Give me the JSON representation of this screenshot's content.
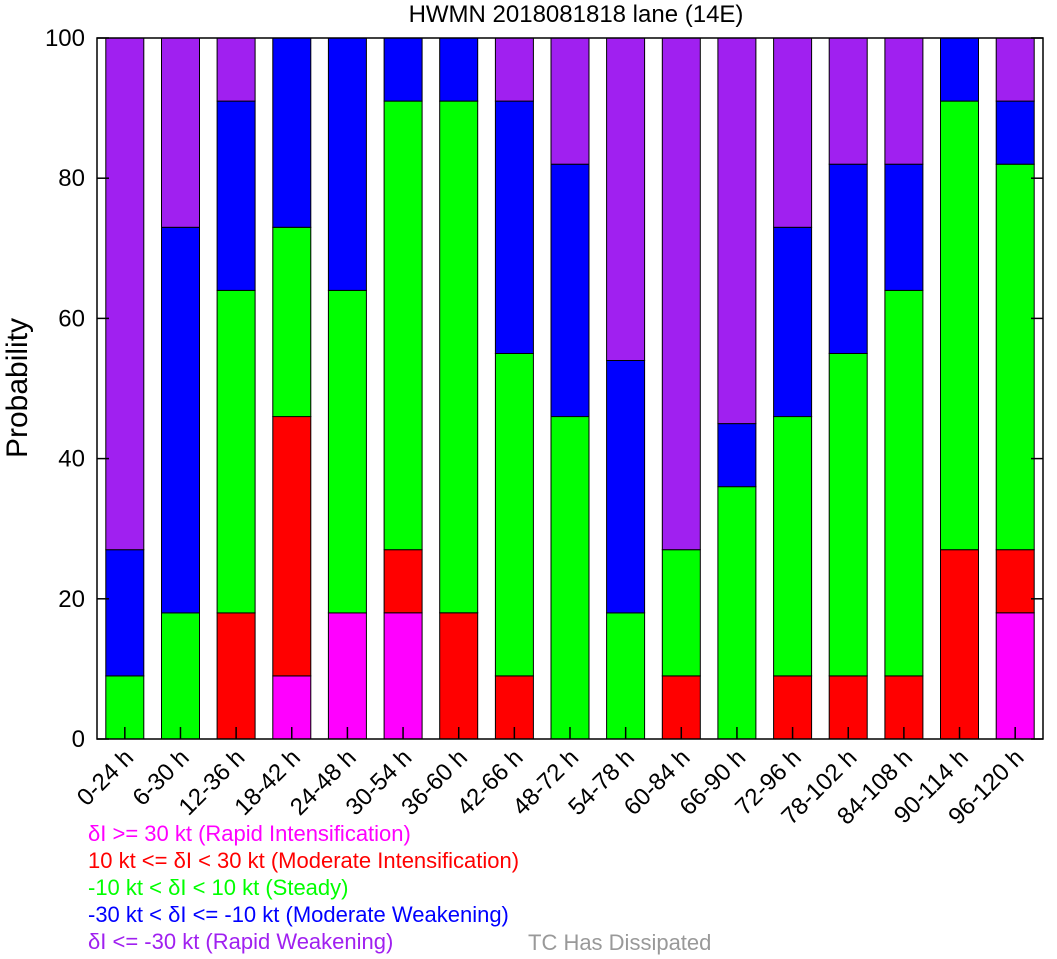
{
  "chart_data": {
    "type": "bar",
    "stacked": true,
    "title": "HWMN 2018081818 lane (14E)",
    "xlabel": "",
    "ylabel": "Probability",
    "ylim": [
      0,
      100
    ],
    "yticks": [
      0,
      20,
      40,
      60,
      80,
      100
    ],
    "grid": false,
    "categories": [
      "0-24 h",
      "6-30 h",
      "12-36 h",
      "18-42 h",
      "24-48 h",
      "30-54 h",
      "36-60 h",
      "42-66 h",
      "48-72 h",
      "54-78 h",
      "60-84 h",
      "66-90 h",
      "72-96 h",
      "78-102 h",
      "84-108 h",
      "90-114 h",
      "96-120 h"
    ],
    "series": [
      {
        "name": "δI >= 30 kt (Rapid Intensification)",
        "color": "#ff00ff",
        "values": [
          0,
          0,
          0,
          9,
          18,
          18,
          0,
          0,
          0,
          0,
          0,
          0,
          0,
          0,
          0,
          0,
          18
        ]
      },
      {
        "name": "10 kt <= δI < 30 kt (Moderate Intensification)",
        "color": "#ff0000",
        "values": [
          0,
          0,
          18,
          37,
          0,
          9,
          18,
          9,
          0,
          0,
          9,
          0,
          9,
          9,
          9,
          27,
          9
        ]
      },
      {
        "name": "-10 kt < δI < 10 kt (Steady)",
        "color": "#00ff00",
        "values": [
          9,
          18,
          46,
          27,
          46,
          64,
          73,
          46,
          46,
          18,
          18,
          36,
          37,
          46,
          55,
          64,
          55
        ]
      },
      {
        "name": "-30 kt < δI <= -10 kt (Moderate Weakening)",
        "color": "#0000ff",
        "values": [
          18,
          55,
          27,
          27,
          36,
          9,
          9,
          36,
          36,
          36,
          0,
          9,
          27,
          27,
          18,
          9,
          9
        ]
      },
      {
        "name": "δI <= -30 kt (Rapid Weakening)",
        "color": "#a020f0",
        "values": [
          73,
          27,
          9,
          0,
          0,
          0,
          0,
          9,
          18,
          46,
          73,
          55,
          27,
          18,
          18,
          0,
          9
        ]
      }
    ],
    "extra_legend": {
      "text": "TC Has Dissipated",
      "color": "#999999"
    }
  }
}
